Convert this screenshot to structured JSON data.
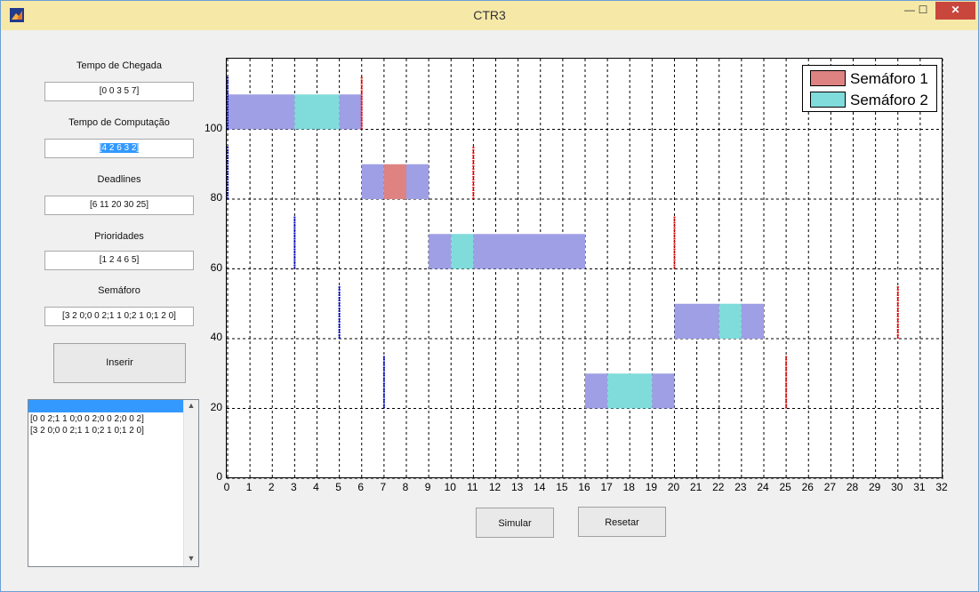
{
  "window": {
    "title": "CTR3",
    "min_label": "—",
    "max_label": "☐",
    "close_label": "✕"
  },
  "form": {
    "chegada": {
      "label": "Tempo de Chegada",
      "value": "[0 0 3 5 7]"
    },
    "computacao": {
      "label": "Tempo de Computação",
      "value": "[4 2 6 3 2]"
    },
    "deadlines": {
      "label": "Deadlines",
      "value": "[6 11 20 30 25]"
    },
    "prioridades": {
      "label": "Prioridades",
      "value": "[1 2 4 6 5]"
    },
    "semaforo": {
      "label": "Semáforo",
      "value": "[3 2 0;0 0 2;1 1 0;2 1 0;1 2 0]"
    },
    "inserir_label": "Inserir"
  },
  "list": {
    "items": [
      "[0 0 2;1 1 0;0 0 2;0 0 2;0 0 2]",
      "[3 2 0;0 0 2;1 1 0;2 1 0;1 2 0]"
    ],
    "up_arrow": "▲",
    "down_arrow": "▼"
  },
  "actions": {
    "simular_label": "Simular",
    "resetar_label": "Resetar"
  },
  "colors": {
    "exec": "#9f9fe6",
    "sem1": "#de8382",
    "sem2": "#80dcdb",
    "arrival": "#0000cc",
    "deadline": "#ee0000"
  },
  "chart_data": {
    "type": "bar",
    "xlim": [
      0,
      32
    ],
    "ylim": [
      0,
      120
    ],
    "x_ticks": [
      "0",
      "1",
      "2",
      "3",
      "4",
      "5",
      "6",
      "7",
      "8",
      "9",
      "10",
      "11",
      "12",
      "13",
      "14",
      "15",
      "16",
      "17",
      "18",
      "19",
      "20",
      "21",
      "22",
      "23",
      "24",
      "25",
      "26",
      "27",
      "28",
      "29",
      "30",
      "31",
      "32"
    ],
    "y_ticks": [
      "0",
      "20",
      "40",
      "60",
      "80",
      "100"
    ],
    "grid": true,
    "legend_placement": "top-right",
    "legend": [
      {
        "name": "Semáforo 1",
        "color": "#de8382"
      },
      {
        "name": "Semáforo 2",
        "color": "#80dcdb"
      }
    ],
    "tasks": [
      {
        "y": 100,
        "segments": [
          {
            "start": 0,
            "end": 3,
            "kind": "exec"
          },
          {
            "start": 3,
            "end": 5,
            "kind": "sem2"
          },
          {
            "start": 5,
            "end": 6,
            "kind": "exec"
          }
        ],
        "arrival": 0,
        "deadline": 6
      },
      {
        "y": 80,
        "segments": [
          {
            "start": 6,
            "end": 7,
            "kind": "exec"
          },
          {
            "start": 7,
            "end": 8,
            "kind": "sem1"
          },
          {
            "start": 8,
            "end": 9,
            "kind": "exec"
          }
        ],
        "arrival": 0,
        "deadline": 11
      },
      {
        "y": 60,
        "segments": [
          {
            "start": 9,
            "end": 10,
            "kind": "exec"
          },
          {
            "start": 10,
            "end": 11,
            "kind": "sem2"
          },
          {
            "start": 11,
            "end": 16,
            "kind": "exec"
          }
        ],
        "arrival": 3,
        "deadline": 20
      },
      {
        "y": 40,
        "segments": [
          {
            "start": 20,
            "end": 22,
            "kind": "exec"
          },
          {
            "start": 22,
            "end": 23,
            "kind": "sem2"
          },
          {
            "start": 23,
            "end": 24,
            "kind": "exec"
          }
        ],
        "arrival": 5,
        "deadline": 30
      },
      {
        "y": 20,
        "segments": [
          {
            "start": 16,
            "end": 17,
            "kind": "exec"
          },
          {
            "start": 17,
            "end": 19,
            "kind": "sem2"
          },
          {
            "start": 19,
            "end": 20,
            "kind": "exec"
          }
        ],
        "arrival": 7,
        "deadline": 25
      }
    ]
  }
}
